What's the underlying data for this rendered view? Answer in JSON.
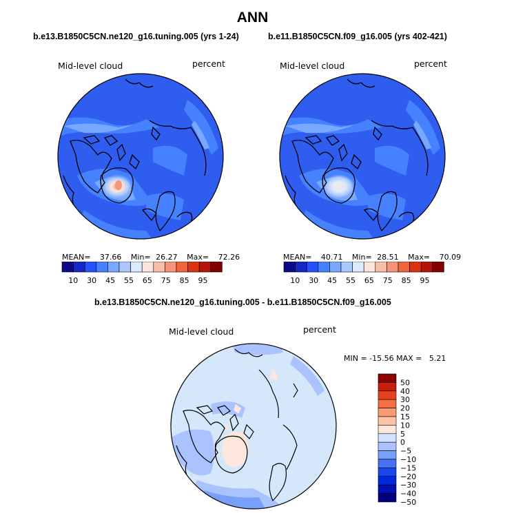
{
  "page": {
    "title": "ANN"
  },
  "panels": [
    {
      "title": "b.e13.B1850C5CN.ne120_g16.tuning.005 (yrs 1-24)",
      "variable": "Mid-level cloud",
      "units": "percent",
      "mean_label": "MEAN=",
      "mean": "37.66",
      "min_label": "Min=",
      "min": "26.27",
      "max_label": "Max=",
      "max": "72.26"
    },
    {
      "title": "b.e11.B1850C5CN.f09_g16.005 (yrs 402-421)",
      "variable": "Mid-level cloud",
      "units": "percent",
      "mean_label": "MEAN=",
      "mean": "40.71",
      "min_label": "Min=",
      "min": "28.51",
      "max_label": "Max=",
      "max": "70.09"
    }
  ],
  "difference": {
    "title": "b.e13.B1850C5CN.ne120_g16.tuning.005 - b.e11.B1850C5CN.f09_g16.005",
    "variable": "Mid-level cloud",
    "units": "percent",
    "stats": "MIN = -15.56 MAX =   5.21"
  },
  "colors": {
    "field_scale": [
      "#0a0a87",
      "#1428c8",
      "#2850ff",
      "#4682ff",
      "#78a8ff",
      "#aac8ff",
      "#dceaff",
      "#fce6dc",
      "#f9bea7",
      "#f59478",
      "#f0643c",
      "#dc3214",
      "#b4140a",
      "#820000"
    ],
    "diff_scale": [
      "#000080",
      "#0010b4",
      "#0028dc",
      "#1946f0",
      "#4673f5",
      "#78a0fa",
      "#aac3ff",
      "#d2e4ff",
      "#fde7dc",
      "#fcc3a5",
      "#fa9b73",
      "#f56e46",
      "#e6411e",
      "#c81e0a",
      "#8c0000"
    ],
    "polar_base": "#2e5df0",
    "diff_base": "#d5e7fb"
  },
  "chart_data": [
    {
      "type": "heatmap",
      "projection": "north-polar-stereographic",
      "title": "b.e13.B1850C5CN.ne120_g16.tuning.005 (yrs 1-24)",
      "variable": "Mid-level cloud",
      "units": "percent",
      "mean": 37.66,
      "min": 26.27,
      "max": 72.26,
      "colorbar_ticks": [
        "10",
        "30",
        "45",
        "55",
        "65",
        "75",
        "85",
        "95"
      ]
    },
    {
      "type": "heatmap",
      "projection": "north-polar-stereographic",
      "title": "b.e11.B1850C5CN.f09_g16.005 (yrs 402-421)",
      "variable": "Mid-level cloud",
      "units": "percent",
      "mean": 40.71,
      "min": 28.51,
      "max": 70.09,
      "colorbar_ticks": [
        "10",
        "30",
        "45",
        "55",
        "65",
        "75",
        "85",
        "95"
      ]
    },
    {
      "type": "heatmap",
      "projection": "north-polar-stereographic",
      "title": "b.e13.B1850C5CN.ne120_g16.tuning.005 - b.e11.B1850C5CN.f09_g16.005",
      "variable": "Mid-level cloud",
      "units": "percent",
      "min": -15.56,
      "max": 5.21,
      "colorbar_ticks": [
        "50",
        "40",
        "30",
        "20",
        "15",
        "10",
        "5",
        "0",
        "−5",
        "−10",
        "−15",
        "−20",
        "−30",
        "−40",
        "−50"
      ]
    }
  ]
}
